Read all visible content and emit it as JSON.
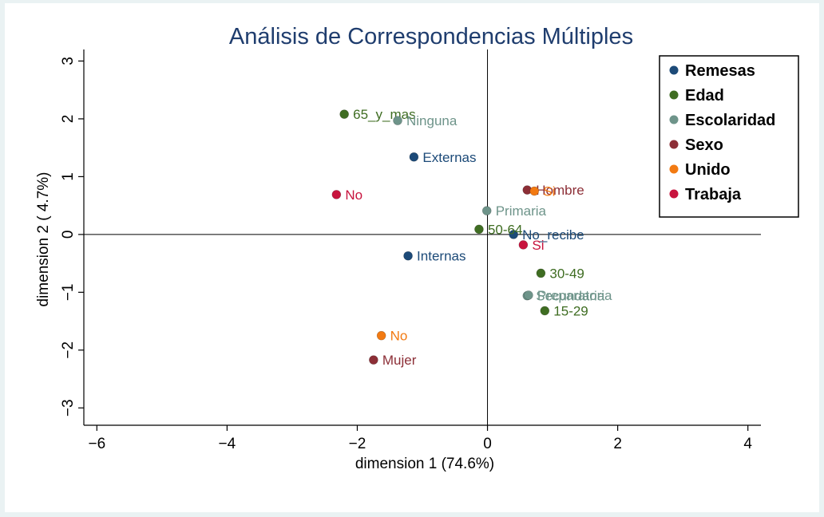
{
  "chart_data": {
    "type": "scatter",
    "title": "Análisis de Correspondencias Múltiples",
    "xlabel": "dimension 1 (74.6%)",
    "ylabel": "dimension 2 ( 4.7%)",
    "xlim": [
      -6.2,
      4.2
    ],
    "ylim": [
      -3.3,
      3.2
    ],
    "xticks": [
      -6,
      -4,
      -2,
      0,
      2,
      4
    ],
    "xtick_labels": [
      "−6",
      "−4",
      "−2",
      "0",
      "2",
      "4"
    ],
    "yticks": [
      3,
      2,
      1,
      0,
      -1,
      -2,
      -3
    ],
    "ytick_labels": [
      "3",
      "2",
      "1",
      "0",
      "−1",
      "−2",
      "−3"
    ],
    "grid": false,
    "reference_lines": {
      "x": 0,
      "y": 0
    },
    "legend_position": "top-right",
    "series": [
      {
        "name": "Remesas",
        "color": "#1c4a78",
        "points": [
          {
            "label": "Externas",
            "x": -1.13,
            "y": 1.34
          },
          {
            "label": "Internas",
            "x": -1.22,
            "y": -0.37
          },
          {
            "label": "No_recibe",
            "x": 0.4,
            "y": 0.0
          }
        ]
      },
      {
        "name": "Edad",
        "color": "#3f6d22",
        "points": [
          {
            "label": "65_y_mas",
            "x": -2.2,
            "y": 2.08
          },
          {
            "label": "50-64",
            "x": -0.13,
            "y": 0.09
          },
          {
            "label": "30-49",
            "x": 0.82,
            "y": -0.67
          },
          {
            "label": "15-29",
            "x": 0.88,
            "y": -1.32
          }
        ]
      },
      {
        "name": "Escolaridad",
        "color": "#6e948a",
        "points": [
          {
            "label": "Ninguna",
            "x": -1.38,
            "y": 1.97
          },
          {
            "label": "Primaria",
            "x": -0.01,
            "y": 0.41
          },
          {
            "label": "Secundaria",
            "x": 0.61,
            "y": -1.06
          },
          {
            "label": "Preparatoria",
            "x": 0.63,
            "y": -1.05
          }
        ]
      },
      {
        "name": "Sexo",
        "color": "#8c2e36",
        "points": [
          {
            "label": "Hombre",
            "x": 0.61,
            "y": 0.77
          },
          {
            "label": "Mujer",
            "x": -1.75,
            "y": -2.17
          }
        ]
      },
      {
        "name": "Unido",
        "color": "#f27a12",
        "points": [
          {
            "label": "Si",
            "x": 0.72,
            "y": 0.75
          },
          {
            "label": "No",
            "x": -1.63,
            "y": -1.75
          }
        ]
      },
      {
        "name": "Trabaja",
        "color": "#c8143e",
        "points": [
          {
            "label": "No",
            "x": -2.32,
            "y": 0.69
          },
          {
            "label": "Si",
            "x": 0.55,
            "y": -0.18
          }
        ]
      }
    ]
  }
}
